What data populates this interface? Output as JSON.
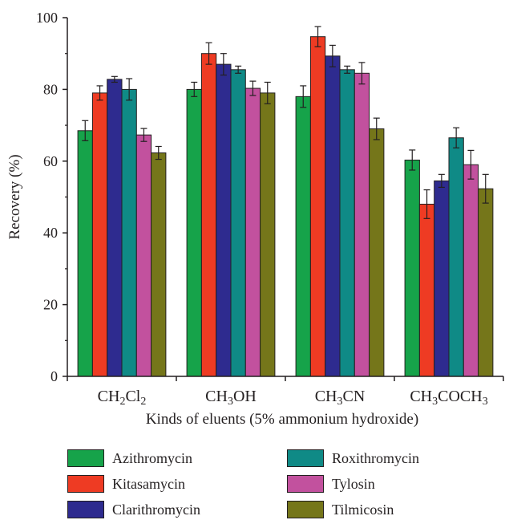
{
  "chart_data": {
    "type": "bar",
    "ylabel": "Recovery (%)",
    "xlabel": "Kinds of eluents (5% ammonium hydroxide)",
    "ylim": [
      0,
      100
    ],
    "yticks": [
      "0",
      "20",
      "40",
      "60",
      "80",
      "100"
    ],
    "categories": [
      {
        "main": "CH",
        "parts": [
          [
            "CH",
            ""
          ],
          [
            "2",
            "sub"
          ],
          [
            "Cl",
            ""
          ],
          [
            "2",
            "sub"
          ]
        ]
      },
      {
        "main": "CH",
        "parts": [
          [
            "CH",
            ""
          ],
          [
            "3",
            "sub"
          ],
          [
            "OH",
            ""
          ]
        ]
      },
      {
        "main": "CH",
        "parts": [
          [
            "CH",
            ""
          ],
          [
            "3",
            "sub"
          ],
          [
            "CN",
            ""
          ]
        ]
      },
      {
        "main": "CH",
        "parts": [
          [
            "CH",
            ""
          ],
          [
            "3",
            "sub"
          ],
          [
            "COCH",
            ""
          ],
          [
            "3",
            "sub"
          ]
        ]
      }
    ],
    "category_labels": [
      "CH2Cl2",
      "CH3OH",
      "CH3CN",
      "CH3COCH3"
    ],
    "series": [
      {
        "name": "Azithromycin",
        "color": "#16a34a",
        "values": [
          68.5,
          80.0,
          78.0,
          60.3
        ],
        "errors": [
          2.8,
          2.0,
          3.0,
          2.8
        ]
      },
      {
        "name": "Kitasamycin",
        "color": "#ee3b23",
        "values": [
          79.0,
          90.0,
          94.7,
          48.0
        ],
        "errors": [
          2.0,
          3.0,
          2.8,
          4.0
        ]
      },
      {
        "name": "Clarithromycin",
        "color": "#2e2b8f",
        "values": [
          82.8,
          87.0,
          89.3,
          54.5
        ],
        "errors": [
          0.8,
          3.0,
          3.0,
          1.8
        ]
      },
      {
        "name": "Roxithromycin",
        "color": "#0f8a86",
        "values": [
          80.0,
          85.5,
          85.5,
          66.5
        ],
        "errors": [
          3.0,
          1.0,
          1.0,
          2.8
        ]
      },
      {
        "name": "Tylosin",
        "color": "#c2519e",
        "values": [
          67.3,
          80.3,
          84.5,
          59.0
        ],
        "errors": [
          1.8,
          2.0,
          3.0,
          4.0
        ]
      },
      {
        "name": "Tilmicosin",
        "color": "#75761a",
        "values": [
          62.3,
          79.0,
          69.0,
          52.3
        ],
        "errors": [
          1.8,
          3.0,
          3.0,
          4.0
        ]
      }
    ],
    "grid": false,
    "legend_position": "bottom"
  }
}
